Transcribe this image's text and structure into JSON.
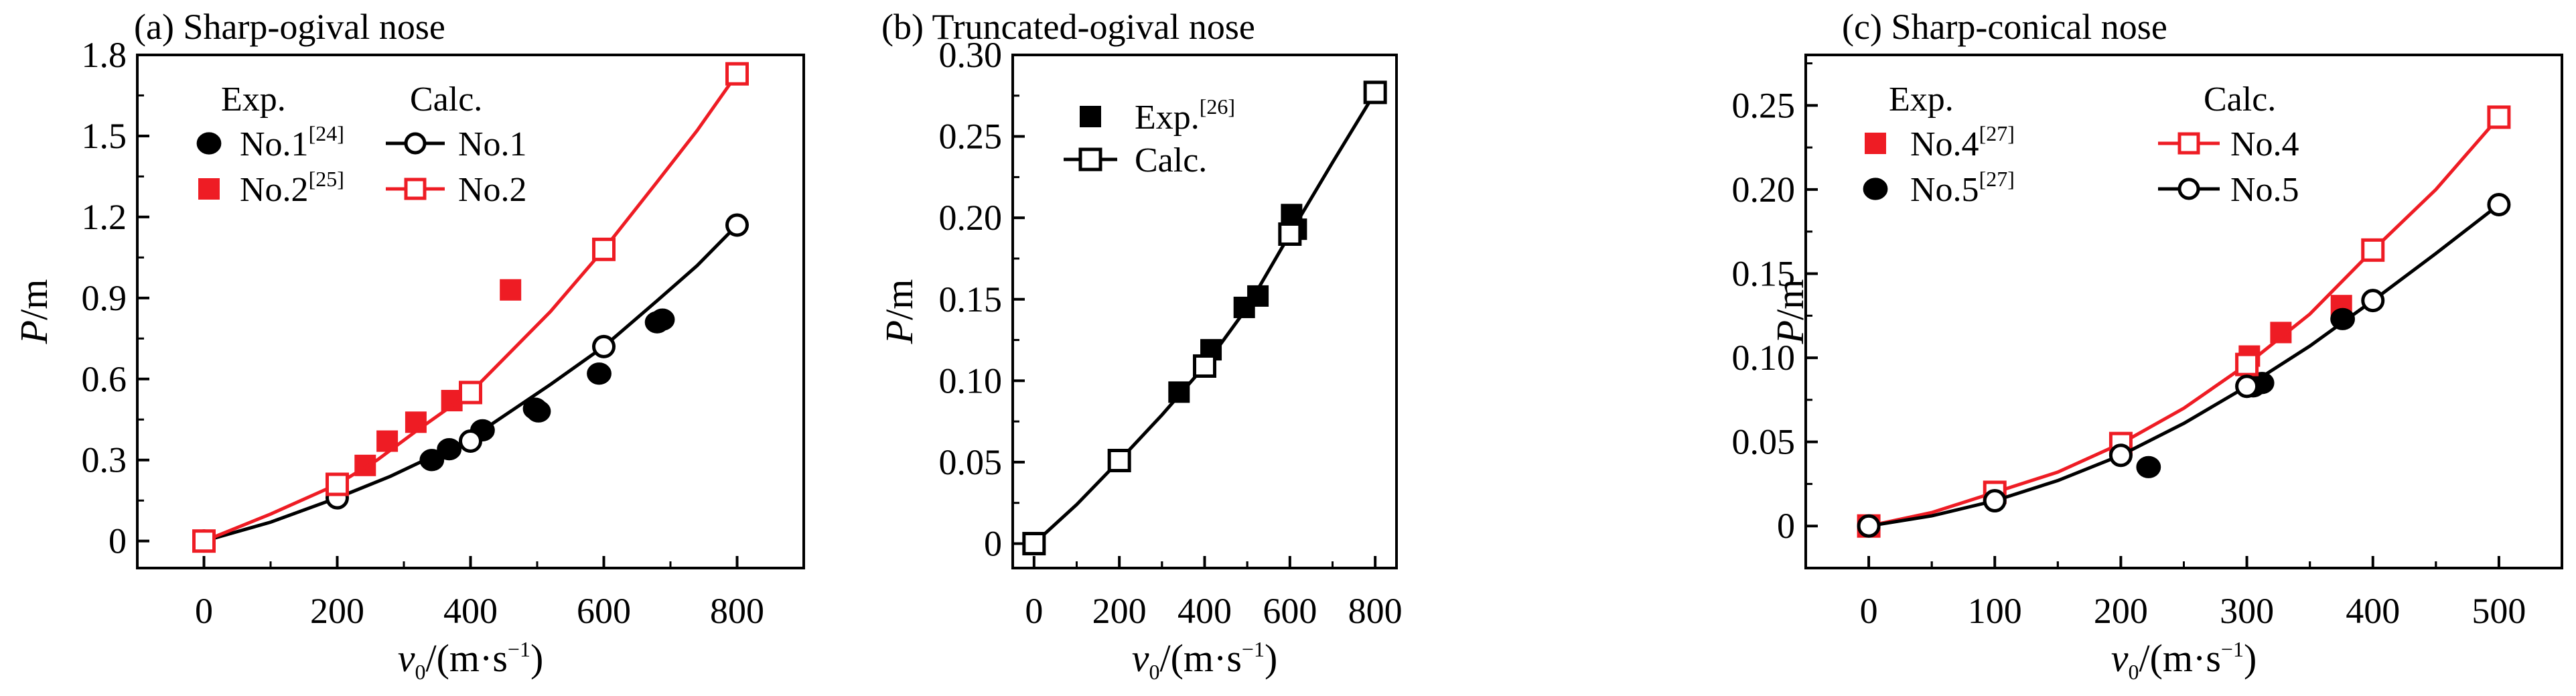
{
  "chart_data": [
    {
      "type": "scatter+line",
      "title": "(a) Sharp-ogival nose",
      "ylabel_italic": "P",
      "ylabel_unit": "/m",
      "xlabel_italic": "v",
      "xlabel_sub": "0",
      "xlabel_unit": "/(m·s",
      "xlabel_exp": "−1",
      "xlabel_close": ")",
      "xlim": [
        -100,
        900
      ],
      "ylim": [
        -0.1,
        1.8
      ],
      "xticks": [
        0,
        200,
        400,
        600,
        800
      ],
      "xtick_labels": [
        "0",
        "200",
        "400",
        "600",
        "800"
      ],
      "yticks": [
        0,
        0.3,
        0.6,
        0.9,
        1.2,
        1.5,
        1.8
      ],
      "ytick_labels": [
        "0",
        "0.3",
        "0.6",
        "0.9",
        "1.2",
        "1.5",
        "1.8"
      ],
      "legend": {
        "exp_header": "Exp.",
        "calc_header": "Calc.",
        "exp_items": [
          {
            "label": "No.1",
            "ref": "[24]",
            "marker": "circle-filled",
            "color": "#000000"
          },
          {
            "label": "No.2",
            "ref": "[25]",
            "marker": "square-filled",
            "color": "#ee1c24"
          }
        ],
        "calc_items": [
          {
            "label": "No.1",
            "marker": "circle-open",
            "color": "#000000"
          },
          {
            "label": "No.2",
            "marker": "square-open",
            "color": "#ee1c24"
          }
        ]
      },
      "series": [
        {
          "kind": "exp",
          "marker": "circle-filled",
          "color": "#000000",
          "x": [
            342,
            368,
            418,
            497,
            502,
            593,
            680,
            688
          ],
          "y": [
            0.3,
            0.34,
            0.41,
            0.49,
            0.48,
            0.62,
            0.81,
            0.82
          ]
        },
        {
          "kind": "exp",
          "marker": "square-filled",
          "color": "#ee1c24",
          "x": [
            242,
            275,
            318,
            372,
            460
          ],
          "y": [
            0.28,
            0.37,
            0.44,
            0.52,
            0.93
          ]
        },
        {
          "kind": "calc",
          "marker": "circle-open",
          "color": "#000000",
          "x": [
            0,
            200,
            400,
            600,
            800
          ],
          "y": [
            0.0,
            0.16,
            0.37,
            0.72,
            1.17
          ],
          "curve": [
            [
              0,
              0.0
            ],
            [
              100,
              0.07
            ],
            [
              200,
              0.16
            ],
            [
              280,
              0.24
            ],
            [
              340,
              0.31
            ],
            [
              400,
              0.38
            ],
            [
              460,
              0.48
            ],
            [
              520,
              0.58
            ],
            [
              600,
              0.72
            ],
            [
              680,
              0.89
            ],
            [
              740,
              1.02
            ],
            [
              800,
              1.17
            ]
          ]
        },
        {
          "kind": "calc",
          "marker": "square-open",
          "color": "#ee1c24",
          "x": [
            0,
            200,
            400,
            600,
            800
          ],
          "y": [
            0.0,
            0.21,
            0.55,
            1.08,
            1.73
          ],
          "curve": [
            [
              0,
              0.0
            ],
            [
              100,
              0.1
            ],
            [
              200,
              0.21
            ],
            [
              260,
              0.3
            ],
            [
              320,
              0.41
            ],
            [
              400,
              0.55
            ],
            [
              460,
              0.7
            ],
            [
              520,
              0.85
            ],
            [
              600,
              1.08
            ],
            [
              680,
              1.33
            ],
            [
              740,
              1.52
            ],
            [
              800,
              1.73
            ]
          ]
        }
      ]
    },
    {
      "type": "scatter+line",
      "title": "(b) Truncated-ogival nose",
      "ylabel_italic": "P",
      "ylabel_unit": "/m",
      "xlabel_italic": "v",
      "xlabel_sub": "0",
      "xlabel_unit": "/(m·s",
      "xlabel_exp": "−1",
      "xlabel_close": ")",
      "xlim": [
        -50,
        850
      ],
      "ylim": [
        -0.015,
        0.3
      ],
      "xticks": [
        0,
        200,
        400,
        600,
        800
      ],
      "xtick_labels": [
        "0",
        "200",
        "400",
        "600",
        "800"
      ],
      "yticks": [
        0,
        0.05,
        0.1,
        0.15,
        0.2,
        0.25,
        0.3
      ],
      "ytick_labels": [
        "0",
        "0.05",
        "0.10",
        "0.15",
        "0.20",
        "0.25",
        "0.30"
      ],
      "legend": {
        "exp_items": [
          {
            "label": "Exp.",
            "ref": "[26]",
            "marker": "square-filled",
            "color": "#000000"
          }
        ],
        "calc_items": [
          {
            "label": "Calc.",
            "marker": "square-open",
            "color": "#000000"
          }
        ]
      },
      "series": [
        {
          "kind": "exp",
          "marker": "square-filled",
          "color": "#000000",
          "x": [
            340,
            415,
            493,
            525,
            604,
            615
          ],
          "y": [
            0.093,
            0.119,
            0.145,
            0.152,
            0.202,
            0.193
          ]
        },
        {
          "kind": "calc",
          "marker": "square-open",
          "color": "#000000",
          "x": [
            0,
            200,
            400,
            600,
            800
          ],
          "y": [
            0.0,
            0.051,
            0.109,
            0.19,
            0.277
          ],
          "curve": [
            [
              0,
              0.0
            ],
            [
              100,
              0.024
            ],
            [
              200,
              0.051
            ],
            [
              300,
              0.079
            ],
            [
              400,
              0.109
            ],
            [
              500,
              0.145
            ],
            [
              600,
              0.19
            ],
            [
              700,
              0.234
            ],
            [
              800,
              0.277
            ]
          ]
        }
      ]
    },
    {
      "type": "scatter+line",
      "title": "(c) Sharp-conical nose",
      "ylabel_italic": "P",
      "ylabel_unit": "/m",
      "xlabel_italic": "v",
      "xlabel_sub": "0",
      "xlabel_unit": "/(m·s",
      "xlabel_exp": "−1",
      "xlabel_close": ")",
      "xlim": [
        -50,
        550
      ],
      "ylim": [
        -0.025,
        0.28
      ],
      "xticks": [
        0,
        100,
        200,
        300,
        400,
        500
      ],
      "xtick_labels": [
        "0",
        "100",
        "200",
        "300",
        "400",
        "500"
      ],
      "yticks": [
        0,
        0.05,
        0.1,
        0.15,
        0.2,
        0.25
      ],
      "ytick_labels": [
        "0",
        "0.05",
        "0.10",
        "0.15",
        "0.20",
        "0.25"
      ],
      "legend": {
        "exp_header": "Exp.",
        "calc_header": "Calc.",
        "exp_items": [
          {
            "label": "No.4",
            "ref": "[27]",
            "marker": "square-filled",
            "color": "#ee1c24"
          },
          {
            "label": "No.5",
            "ref": "[27]",
            "marker": "circle-filled",
            "color": "#000000"
          }
        ],
        "calc_items": [
          {
            "label": "No.4",
            "marker": "square-open",
            "color": "#ee1c24"
          },
          {
            "label": "No.5",
            "marker": "circle-open",
            "color": "#000000"
          }
        ]
      },
      "series": [
        {
          "kind": "exp",
          "marker": "square-filled",
          "color": "#ee1c24",
          "x": [
            302,
            327,
            375
          ],
          "y": [
            0.101,
            0.115,
            0.131
          ]
        },
        {
          "kind": "exp",
          "marker": "circle-filled",
          "color": "#000000",
          "x": [
            222,
            305,
            312,
            376
          ],
          "y": [
            0.035,
            0.083,
            0.085,
            0.123
          ]
        },
        {
          "kind": "calc",
          "marker": "square-open",
          "color": "#ee1c24",
          "x": [
            0,
            100,
            200,
            300,
            400,
            500
          ],
          "y": [
            0.0,
            0.02,
            0.049,
            0.096,
            0.164,
            0.243
          ],
          "curve": [
            [
              0,
              0.0
            ],
            [
              50,
              0.008
            ],
            [
              100,
              0.02
            ],
            [
              150,
              0.032
            ],
            [
              200,
              0.049
            ],
            [
              250,
              0.07
            ],
            [
              300,
              0.096
            ],
            [
              350,
              0.126
            ],
            [
              400,
              0.164
            ],
            [
              450,
              0.2
            ],
            [
              500,
              0.243
            ]
          ]
        },
        {
          "kind": "calc",
          "marker": "circle-open",
          "color": "#000000",
          "x": [
            0,
            100,
            200,
            300,
            400,
            500
          ],
          "y": [
            0.0,
            0.015,
            0.042,
            0.083,
            0.134,
            0.191
          ],
          "curve": [
            [
              0,
              0.0
            ],
            [
              50,
              0.006
            ],
            [
              100,
              0.015
            ],
            [
              150,
              0.027
            ],
            [
              200,
              0.042
            ],
            [
              250,
              0.061
            ],
            [
              300,
              0.083
            ],
            [
              350,
              0.107
            ],
            [
              400,
              0.134
            ],
            [
              450,
              0.162
            ],
            [
              500,
              0.191
            ]
          ]
        }
      ]
    }
  ]
}
